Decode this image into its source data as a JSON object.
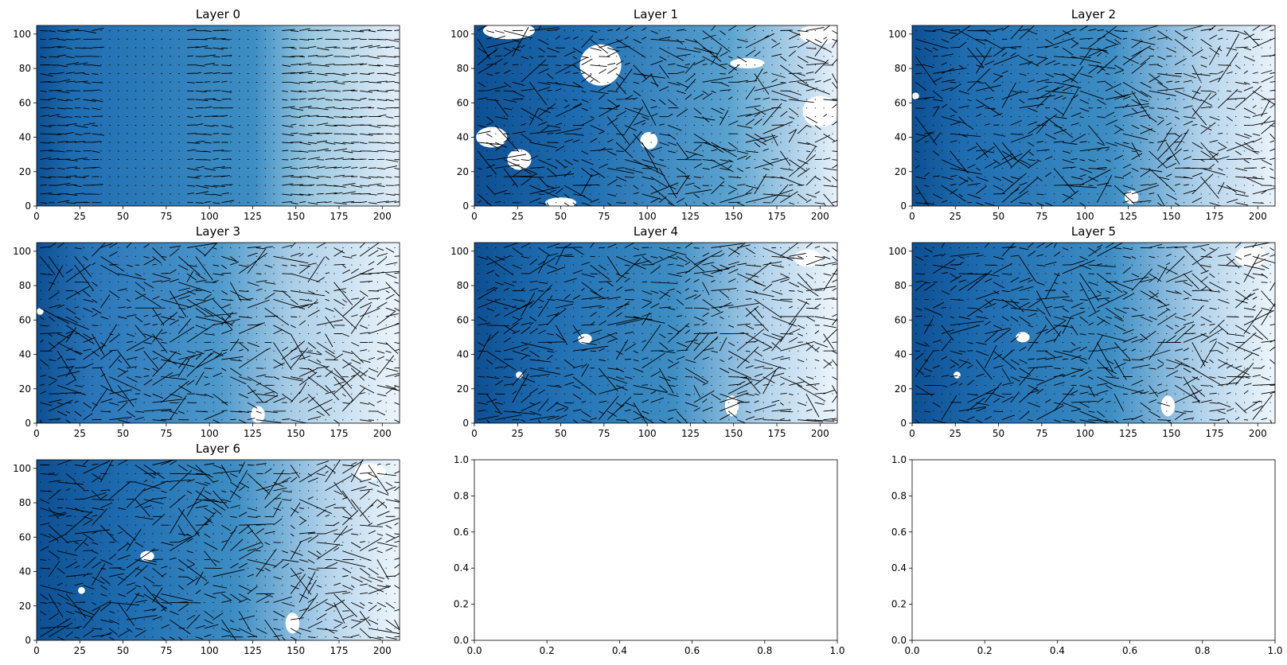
{
  "figure": {
    "grid": {
      "rows": 3,
      "cols": 3
    },
    "colormap": "Blues",
    "arrow_color": "#000000",
    "masked_color": "#ffffff"
  },
  "chart_data": [
    {
      "type": "heatmap",
      "overlay": "quiver",
      "title": "Layer 0",
      "xlim": [
        0,
        210
      ],
      "ylim": [
        0,
        105
      ],
      "xticks": [
        0,
        25,
        50,
        75,
        100,
        125,
        150,
        175,
        200
      ],
      "yticks": [
        0,
        20,
        40,
        60,
        80,
        100
      ],
      "gradient_stops": [
        [
          0,
          "#0d4f92"
        ],
        [
          0.1,
          "#1f6db1"
        ],
        [
          0.6,
          "#3e8ec4"
        ],
        [
          0.75,
          "#9ac8e0"
        ],
        [
          1,
          "#e3eef9"
        ]
      ],
      "masked_regions": []
    },
    {
      "type": "heatmap",
      "overlay": "quiver",
      "title": "Layer 1",
      "xlim": [
        0,
        210
      ],
      "ylim": [
        0,
        105
      ],
      "xticks": [
        0,
        25,
        50,
        75,
        100,
        125,
        150,
        175,
        200
      ],
      "yticks": [
        0,
        20,
        40,
        60,
        80,
        100
      ],
      "gradient_stops": [
        [
          0,
          "#0d4f92"
        ],
        [
          0.3,
          "#1f6db1"
        ],
        [
          0.7,
          "#5aa2cf"
        ],
        [
          1,
          "#e8f1fa"
        ]
      ],
      "masked_regions": [
        {
          "cx": 20,
          "cy": 102,
          "rx": 15,
          "ry": 5
        },
        {
          "cx": 73,
          "cy": 82,
          "rx": 12,
          "ry": 12
        },
        {
          "cx": 101,
          "cy": 38,
          "rx": 5,
          "ry": 5
        },
        {
          "cx": 10,
          "cy": 40,
          "rx": 9,
          "ry": 6
        },
        {
          "cx": 26,
          "cy": 27,
          "rx": 7,
          "ry": 6
        },
        {
          "cx": 50,
          "cy": 2,
          "rx": 9,
          "ry": 3
        },
        {
          "cx": 158,
          "cy": 83,
          "rx": 10,
          "ry": 3
        },
        {
          "cx": 200,
          "cy": 55,
          "rx": 10,
          "ry": 9
        },
        {
          "cx": 200,
          "cy": 100,
          "rx": 12,
          "ry": 6
        }
      ]
    },
    {
      "type": "heatmap",
      "overlay": "quiver",
      "title": "Layer 2",
      "xlim": [
        0,
        210
      ],
      "ylim": [
        0,
        105
      ],
      "xticks": [
        0,
        25,
        50,
        75,
        100,
        125,
        150,
        175,
        200
      ],
      "yticks": [
        0,
        20,
        40,
        60,
        80,
        100
      ],
      "gradient_stops": [
        [
          0,
          "#0d4f92"
        ],
        [
          0.15,
          "#1f6db1"
        ],
        [
          0.55,
          "#3e8ec4"
        ],
        [
          0.8,
          "#b3d3eb"
        ],
        [
          1,
          "#eaf3fb"
        ]
      ],
      "masked_regions": [
        {
          "cx": 2,
          "cy": 64,
          "rx": 2,
          "ry": 2
        },
        {
          "cx": 127,
          "cy": 5,
          "rx": 4,
          "ry": 4
        }
      ]
    },
    {
      "type": "heatmap",
      "overlay": "quiver",
      "title": "Layer 3",
      "xlim": [
        0,
        210
      ],
      "ylim": [
        0,
        105
      ],
      "xticks": [
        0,
        25,
        50,
        75,
        100,
        125,
        150,
        175,
        200
      ],
      "yticks": [
        0,
        20,
        40,
        60,
        80,
        100
      ],
      "gradient_stops": [
        [
          0,
          "#0d4f92"
        ],
        [
          0.15,
          "#2a75b9"
        ],
        [
          0.5,
          "#4d98cb"
        ],
        [
          0.7,
          "#a9cde6"
        ],
        [
          1,
          "#edf5fc"
        ]
      ],
      "masked_regions": [
        {
          "cx": 2,
          "cy": 65,
          "rx": 2,
          "ry": 2
        },
        {
          "cx": 128,
          "cy": 5,
          "rx": 4,
          "ry": 5
        }
      ]
    },
    {
      "type": "heatmap",
      "overlay": "quiver",
      "title": "Layer 4",
      "xlim": [
        0,
        210
      ],
      "ylim": [
        0,
        105
      ],
      "xticks": [
        0,
        25,
        50,
        75,
        100,
        125,
        150,
        175,
        200
      ],
      "yticks": [
        0,
        20,
        40,
        60,
        80,
        100
      ],
      "gradient_stops": [
        [
          0,
          "#0d4f92"
        ],
        [
          0.2,
          "#1f6db1"
        ],
        [
          0.55,
          "#3e8ec4"
        ],
        [
          0.8,
          "#b3d3eb"
        ],
        [
          1,
          "#eef6fc"
        ]
      ],
      "masked_regions": [
        {
          "cx": 64,
          "cy": 49,
          "rx": 4,
          "ry": 3
        },
        {
          "cx": 26,
          "cy": 28,
          "rx": 2,
          "ry": 2
        },
        {
          "cx": 149,
          "cy": 10,
          "rx": 4,
          "ry": 6
        },
        {
          "cx": 193,
          "cy": 96,
          "rx": 8,
          "ry": 5
        }
      ]
    },
    {
      "type": "heatmap",
      "overlay": "quiver",
      "title": "Layer 5",
      "xlim": [
        0,
        210
      ],
      "ylim": [
        0,
        105
      ],
      "xticks": [
        0,
        25,
        50,
        75,
        100,
        125,
        150,
        175,
        200
      ],
      "yticks": [
        0,
        20,
        40,
        60,
        80,
        100
      ],
      "gradient_stops": [
        [
          0,
          "#0d4f92"
        ],
        [
          0.2,
          "#1f6db1"
        ],
        [
          0.55,
          "#3e8ec4"
        ],
        [
          0.8,
          "#b3d3eb"
        ],
        [
          1,
          "#eef6fc"
        ]
      ],
      "masked_regions": [
        {
          "cx": 64,
          "cy": 50,
          "rx": 4,
          "ry": 3
        },
        {
          "cx": 26,
          "cy": 28,
          "rx": 2,
          "ry": 2
        },
        {
          "cx": 148,
          "cy": 10,
          "rx": 4,
          "ry": 6
        },
        {
          "cx": 196,
          "cy": 97,
          "rx": 9,
          "ry": 6
        }
      ]
    },
    {
      "type": "heatmap",
      "overlay": "quiver",
      "title": "Layer 6",
      "xlim": [
        0,
        210
      ],
      "ylim": [
        0,
        105
      ],
      "xticks": [
        0,
        25,
        50,
        75,
        100,
        125,
        150,
        175,
        200
      ],
      "yticks": [
        0,
        20,
        40,
        60,
        80,
        100
      ],
      "gradient_stops": [
        [
          0,
          "#0d4f92"
        ],
        [
          0.25,
          "#1f6db1"
        ],
        [
          0.55,
          "#3e8ec4"
        ],
        [
          0.8,
          "#b3d3eb"
        ],
        [
          1,
          "#eef6fc"
        ]
      ],
      "masked_regions": [
        {
          "cx": 64,
          "cy": 49,
          "rx": 4,
          "ry": 3
        },
        {
          "cx": 26,
          "cy": 29,
          "rx": 2,
          "ry": 2
        },
        {
          "cx": 148,
          "cy": 10,
          "rx": 4,
          "ry": 6
        },
        {
          "cx": 193,
          "cy": 98,
          "rx": 9,
          "ry": 5
        }
      ]
    },
    {
      "type": "empty",
      "title": "",
      "xlim": [
        0,
        1
      ],
      "ylim": [
        0,
        1
      ],
      "xticks": [
        0.0,
        0.2,
        0.4,
        0.6,
        0.8,
        1.0
      ],
      "yticks": [
        0.0,
        0.2,
        0.4,
        0.6,
        0.8,
        1.0
      ]
    },
    {
      "type": "empty",
      "title": "",
      "xlim": [
        0,
        1
      ],
      "ylim": [
        0,
        1
      ],
      "xticks": [
        0.0,
        0.2,
        0.4,
        0.6,
        0.8,
        1.0
      ],
      "yticks": [
        0.0,
        0.2,
        0.4,
        0.6,
        0.8,
        1.0
      ]
    }
  ]
}
